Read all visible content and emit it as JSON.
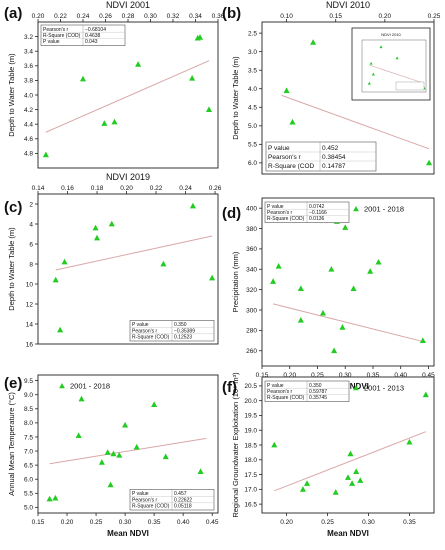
{
  "figure": {
    "panel_letters": [
      "(a)",
      "(b)",
      "(c)",
      "(d)",
      "(e)",
      "(f)"
    ]
  },
  "chart_data": [
    {
      "panel": "(a)",
      "type": "scatter",
      "title": "NDVI 2001",
      "xlabel": "",
      "ylabel": "Depth to Water Table (m)",
      "xlim": [
        0.2,
        0.36
      ],
      "ylim": [
        3.0,
        5.0
      ],
      "y_reversed": true,
      "xticks": [
        "0.20",
        "0.22",
        "0.24",
        "0.26",
        "0.28",
        "0.30",
        "0.32",
        "0.34",
        "0.36"
      ],
      "yticks": [
        "3.2",
        "3.4",
        "3.6",
        "3.8",
        "4.0",
        "4.2",
        "4.4",
        "4.6",
        "4.8"
      ],
      "x_axis_position": "top",
      "x": [
        0.207,
        0.24,
        0.259,
        0.268,
        0.289,
        0.337,
        0.342,
        0.344,
        0.352
      ],
      "y": [
        4.82,
        3.78,
        4.39,
        4.37,
        3.58,
        3.77,
        3.22,
        3.21,
        4.2
      ],
      "trendline": {
        "x": [
          0.207,
          0.352
        ],
        "y": [
          4.51,
          3.53
        ]
      },
      "stats": {
        "rows": [
          [
            "Pearson's r",
            "−0.68104"
          ],
          [
            "R-Square (COD)",
            "0.4638"
          ],
          [
            "P value",
            "0.043"
          ]
        ],
        "position": "top-left"
      },
      "color": "#22cc22",
      "line_color": "#d9a7a7"
    },
    {
      "panel": "(b)",
      "type": "scatter",
      "title": "NDVI 2010",
      "xlabel": "",
      "ylabel": "Depth to Water Table (m)",
      "xlim": [
        0.075,
        0.25
      ],
      "ylim": [
        2.2,
        6.3
      ],
      "y_reversed": true,
      "xticks": [
        "0.10",
        "0.15",
        "0.20",
        "0.25"
      ],
      "yticks": [
        "2.5",
        "3.0",
        "3.5",
        "4.0",
        "4.5",
        "5.0",
        "5.5",
        "6.0"
      ],
      "x_axis_position": "top",
      "x": [
        0.095,
        0.1,
        0.106,
        0.127,
        0.171,
        0.245
      ],
      "y": [
        5.62,
        4.05,
        4.9,
        2.75,
        3.62,
        6.0
      ],
      "trendline": {
        "x": [
          0.095,
          0.245
        ],
        "y": [
          4.18,
          5.62
        ]
      },
      "stats": {
        "rows": [
          [
            "P value",
            "0.452"
          ],
          [
            "Pearson's r",
            "0.38454"
          ],
          [
            "R-Square (COD",
            "0.14787"
          ]
        ],
        "position": "bottom-left"
      },
      "inset": {
        "title": "NDVI 2010",
        "position": "top-right"
      },
      "color": "#22cc22",
      "line_color": "#d9a7a7"
    },
    {
      "panel": "(c)",
      "type": "scatter",
      "title": "NDVI 2019",
      "xlabel": "",
      "ylabel": "Depth to Water Table (m)",
      "xlim": [
        0.14,
        0.262
      ],
      "ylim": [
        1.0,
        16.0
      ],
      "y_reversed": true,
      "xticks": [
        "0.14",
        "0.16",
        "0.18",
        "0.20",
        "0.22",
        "0.24",
        "0.26"
      ],
      "yticks": [
        "2",
        "4",
        "6",
        "8",
        "10",
        "12",
        "14",
        "16"
      ],
      "x_axis_position": "top",
      "x": [
        0.152,
        0.155,
        0.158,
        0.179,
        0.18,
        0.19,
        0.225,
        0.245,
        0.258
      ],
      "y": [
        9.6,
        14.6,
        7.8,
        4.4,
        5.4,
        4.0,
        8.0,
        2.2,
        9.4
      ],
      "trendline": {
        "x": [
          0.152,
          0.258
        ],
        "y": [
          8.6,
          5.2
        ]
      },
      "stats": {
        "rows": [
          [
            "P value",
            "0.350"
          ],
          [
            "Pearson's r",
            "−0.35389"
          ],
          [
            "R-Square (COD)",
            "0.12523"
          ]
        ],
        "position": "bottom-right"
      },
      "color": "#22cc22",
      "line_color": "#d9a7a7"
    },
    {
      "panel": "(d)",
      "type": "scatter",
      "title": "",
      "xlabel": "Mean NDVI",
      "ylabel": "Precipitation (mm)",
      "xlim": [
        0.15,
        0.46
      ],
      "ylim": [
        245,
        410
      ],
      "y_reversed": false,
      "xticks": [
        "0.15",
        "0.20",
        "0.25",
        "0.30",
        "0.35",
        "0.40",
        "0.45"
      ],
      "yticks": [
        "260",
        "280",
        "300",
        "320",
        "340",
        "360",
        "380",
        "400"
      ],
      "x_axis_position": "bottom",
      "legend": {
        "label": "2001 - 2018",
        "position": "top-right"
      },
      "x": [
        0.17,
        0.18,
        0.22,
        0.22,
        0.24,
        0.26,
        0.275,
        0.28,
        0.285,
        0.295,
        0.3,
        0.315,
        0.345,
        0.36,
        0.44
      ],
      "y": [
        328,
        343,
        290,
        321,
        389,
        297,
        340,
        260,
        387,
        283,
        381,
        321,
        338,
        347,
        270
      ],
      "trendline": {
        "x": [
          0.17,
          0.44
        ],
        "y": [
          306,
          269
        ]
      },
      "stats": {
        "rows": [
          [
            "P value",
            "0.0742"
          ],
          [
            "Pearson's r",
            "−0.1166"
          ],
          [
            "R-Square (COD)",
            "0.0136"
          ]
        ],
        "position": "top-left"
      },
      "color": "#22cc22",
      "line_color": "#d9a7a7"
    },
    {
      "panel": "(e)",
      "type": "scatter",
      "title": "",
      "xlabel": "Mean NDVI",
      "ylabel": "Annual Mean Temperature (°C)",
      "xlim": [
        0.15,
        0.46
      ],
      "ylim": [
        4.8,
        9.7
      ],
      "y_reversed": false,
      "xticks": [
        "0.15",
        "0.20",
        "0.25",
        "0.30",
        "0.35",
        "0.40",
        "0.45"
      ],
      "yticks": [
        "5.0",
        "5.5",
        "6.0",
        "6.5",
        "7.0",
        "7.5",
        "8.0",
        "8.5",
        "9.0",
        "9.5"
      ],
      "x_axis_position": "bottom",
      "legend": {
        "label": "2001 - 2018",
        "position": "top-left"
      },
      "x": [
        0.17,
        0.18,
        0.22,
        0.225,
        0.26,
        0.27,
        0.275,
        0.28,
        0.29,
        0.3,
        0.32,
        0.35,
        0.37,
        0.43
      ],
      "y": [
        5.3,
        5.33,
        7.55,
        8.85,
        6.6,
        6.95,
        5.8,
        6.9,
        6.85,
        7.92,
        7.14,
        8.65,
        6.8,
        6.27
      ],
      "trendline": {
        "x": [
          0.17,
          0.44
        ],
        "y": [
          6.55,
          7.45
        ]
      },
      "stats": {
        "rows": [
          [
            "P value",
            "0.457"
          ],
          [
            "Pearson's r",
            "0.22622"
          ],
          [
            "R-Square (COD)",
            "0.05118"
          ]
        ],
        "position": "bottom-right"
      },
      "color": "#22cc22",
      "line_color": "#d9a7a7"
    },
    {
      "panel": "(f)",
      "type": "scatter",
      "title": "",
      "xlabel": "Mean NDVI",
      "ylabel": "Regional Groundwater Exploitation (10⁸ m³)",
      "xlim": [
        0.17,
        0.38
      ],
      "ylim": [
        16.2,
        20.8
      ],
      "y_reversed": false,
      "xticks": [
        "0.20",
        "0.25",
        "0.30",
        "0.35"
      ],
      "yticks": [
        "16.5",
        "17.0",
        "17.5",
        "18.0",
        "18.5",
        "19.0",
        "19.5",
        "20.0",
        "20.5"
      ],
      "x_axis_position": "bottom",
      "legend": {
        "label": "2001 - 2013",
        "position": "top-right"
      },
      "x": [
        0.185,
        0.22,
        0.225,
        0.26,
        0.275,
        0.278,
        0.28,
        0.285,
        0.29,
        0.35,
        0.37
      ],
      "y": [
        18.5,
        17.0,
        17.2,
        16.9,
        17.4,
        18.2,
        17.2,
        17.6,
        17.3,
        18.6,
        20.2
      ],
      "trendline": {
        "x": [
          0.185,
          0.37
        ],
        "y": [
          16.95,
          18.95
        ]
      },
      "stats": {
        "rows": [
          [
            "P value",
            "0.350"
          ],
          [
            "Pearson's r",
            "0.59787"
          ],
          [
            "R-Square (COD)",
            "0.35745"
          ]
        ],
        "position": "top-left"
      },
      "color": "#22cc22",
      "line_color": "#d9a7a7"
    }
  ]
}
